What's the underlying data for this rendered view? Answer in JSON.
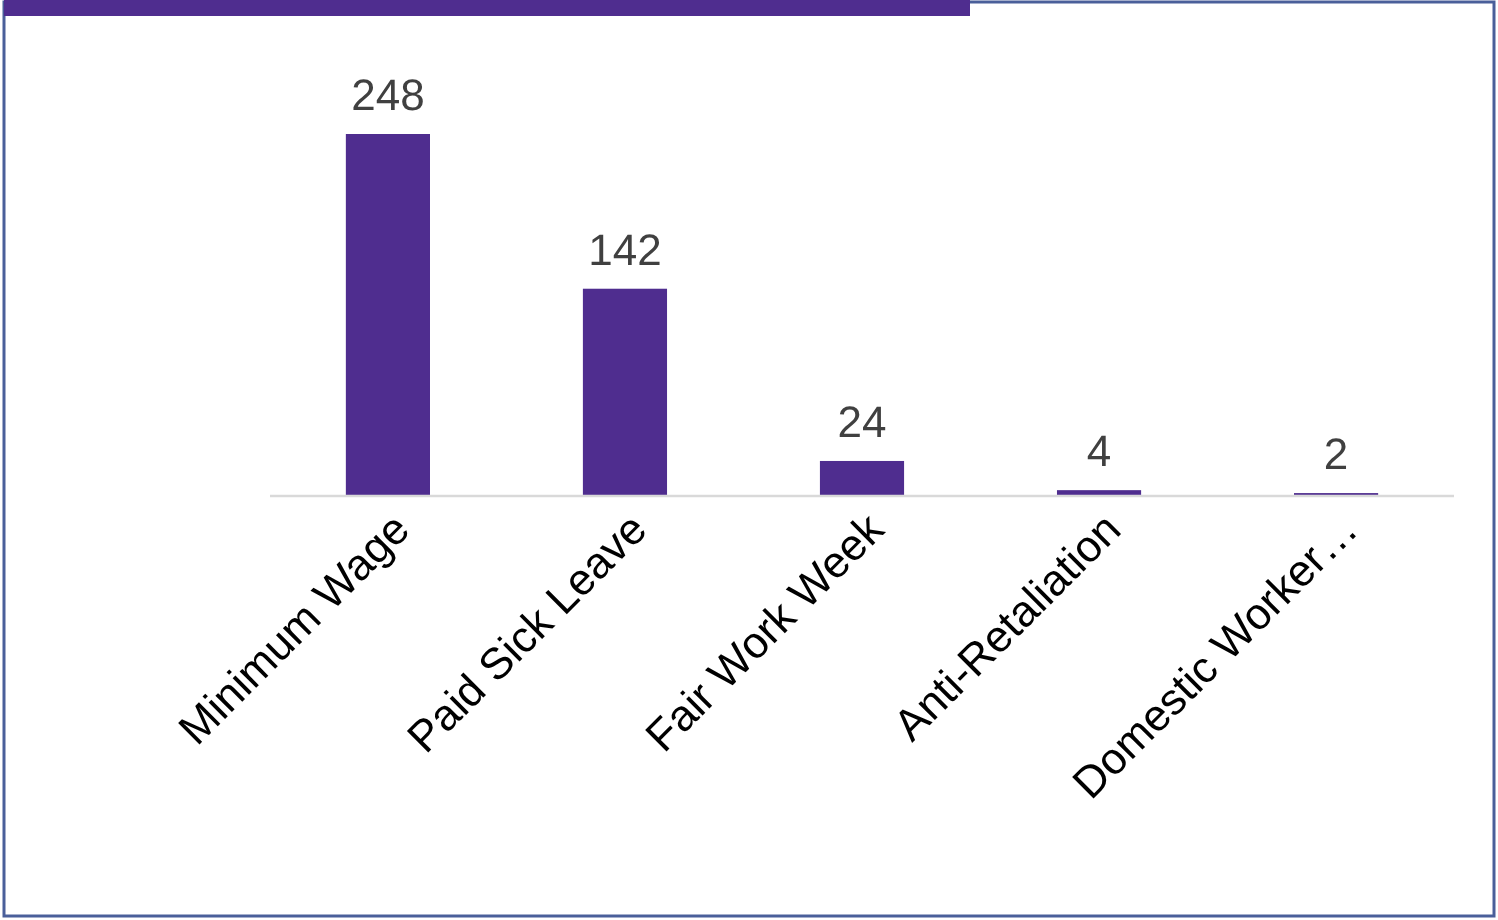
{
  "chart_data": {
    "type": "bar",
    "categories": [
      "Minimum Wage",
      "Paid Sick Leave",
      "Fair Work Week",
      "Anti-Retaliation",
      "Domestic Worker…"
    ],
    "values": [
      248,
      142,
      24,
      4,
      2
    ],
    "color": "#4f2d8f",
    "data_labels": true
  }
}
